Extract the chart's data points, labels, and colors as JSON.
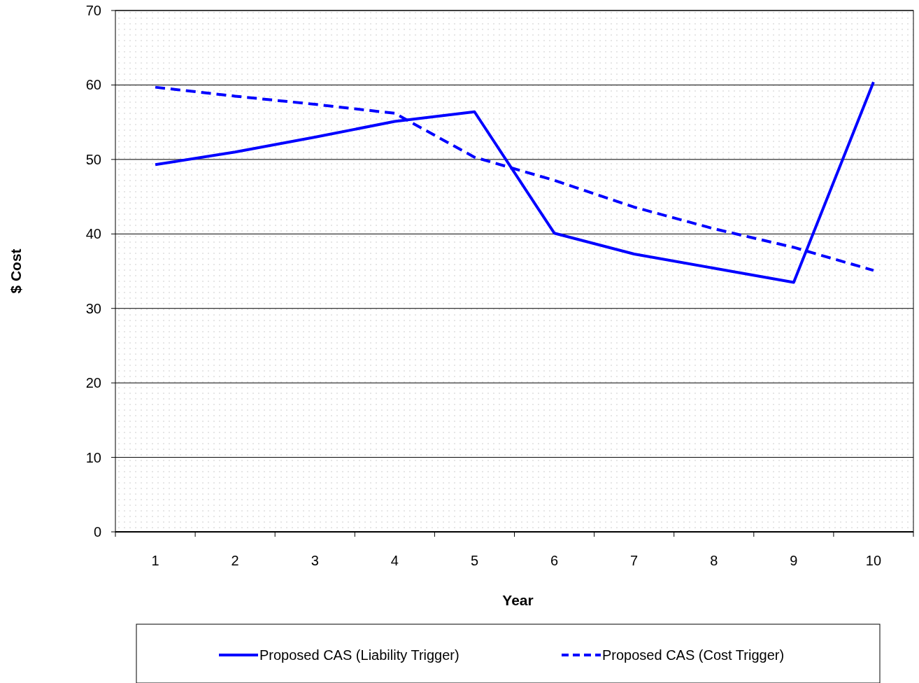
{
  "chart_data": {
    "type": "line",
    "xlabel": "Year",
    "ylabel": "$ Cost",
    "categories": [
      "1",
      "2",
      "3",
      "4",
      "5",
      "6",
      "7",
      "8",
      "9",
      "10"
    ],
    "series": [
      {
        "name": "Proposed CAS (Liability Trigger)",
        "color": "#0000ff",
        "line_style": "solid",
        "values": [
          49.3,
          51.0,
          53.0,
          55.1,
          56.4,
          40.1,
          37.3,
          35.4,
          33.5,
          60.4
        ]
      },
      {
        "name": "Proposed CAS (Cost Trigger)",
        "color": "#0000ff",
        "line_style": "dashed",
        "values": [
          59.7,
          58.5,
          57.4,
          56.2,
          50.3,
          47.2,
          43.6,
          40.7,
          38.2,
          35.1
        ]
      }
    ],
    "ylim": [
      0,
      70
    ],
    "yticks": [
      0,
      10,
      20,
      30,
      40,
      50,
      60,
      70
    ],
    "grid": "y",
    "legend": "bottom",
    "marker": "none"
  }
}
